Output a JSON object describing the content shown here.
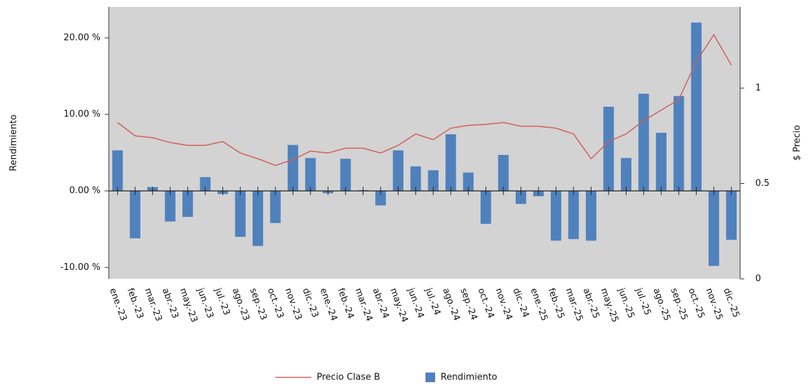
{
  "chart_data": {
    "type": "combo",
    "categories": [
      "ene.-23",
      "feb.-23",
      "mar.-23",
      "abr.-23",
      "may.-23",
      "jun.-23",
      "jul.-23",
      "ago.-23",
      "sep.-23",
      "oct.-23",
      "nov.-23",
      "dic.-23",
      "ene.-24",
      "feb.-24",
      "mar.-24",
      "abr.-24",
      "may.-24",
      "jun.-24",
      "jul.-24",
      "ago.-24",
      "sep.-24",
      "oct.-24",
      "nov.-24",
      "dic.-24",
      "ene.-25",
      "feb.-25",
      "mar.-25",
      "abr.-25",
      "may.-25",
      "jun.-25",
      "jul.-25",
      "ago.-25",
      "sep.-25",
      "oct.-25",
      "nov.-25",
      "dic.-25"
    ],
    "series": [
      {
        "name": "Precio Clase B",
        "type": "line",
        "axis": "y2",
        "color": "#d0605a",
        "values": [
          0.82,
          0.75,
          0.74,
          0.715,
          0.7,
          0.7,
          0.72,
          0.66,
          0.63,
          0.595,
          0.625,
          0.67,
          0.66,
          0.685,
          0.685,
          0.66,
          0.7,
          0.76,
          0.73,
          0.79,
          0.805,
          0.81,
          0.82,
          0.8,
          0.8,
          0.79,
          0.76,
          0.63,
          0.72,
          0.76,
          0.83,
          0.885,
          0.94,
          1.14,
          1.28,
          1.12
        ]
      },
      {
        "name": "Rendimiento",
        "type": "bar",
        "color": "#4f81bd",
        "values": [
          5.3,
          -6.2,
          0.5,
          -4.0,
          -3.4,
          1.8,
          -0.4,
          -6.0,
          -7.2,
          -4.2,
          6.0,
          4.3,
          -0.3,
          4.2,
          0.1,
          -1.9,
          5.3,
          3.2,
          2.7,
          7.4,
          2.4,
          -4.3,
          4.7,
          -1.7,
          -0.7,
          -6.5,
          -6.3,
          -6.5,
          11.0,
          4.3,
          12.7,
          7.6,
          12.4,
          22.0,
          -9.8,
          -6.4
        ]
      }
    ],
    "y_label": "Rendimiento",
    "y2_label": "$ Precio",
    "ylim": [
      -11.5,
      24.05
    ],
    "yticks": [
      {
        "value": -10,
        "label": "-10.00 %"
      },
      {
        "value": 0,
        "label": "0.00 %"
      },
      {
        "value": 10,
        "label": "10.00 %"
      },
      {
        "value": 20,
        "label": "20.00 %"
      }
    ],
    "y2lim": [
      0,
      1.426
    ],
    "y2ticks": [
      0,
      0.5,
      1
    ],
    "background": "#d3d3d3",
    "legend": "bottom"
  }
}
